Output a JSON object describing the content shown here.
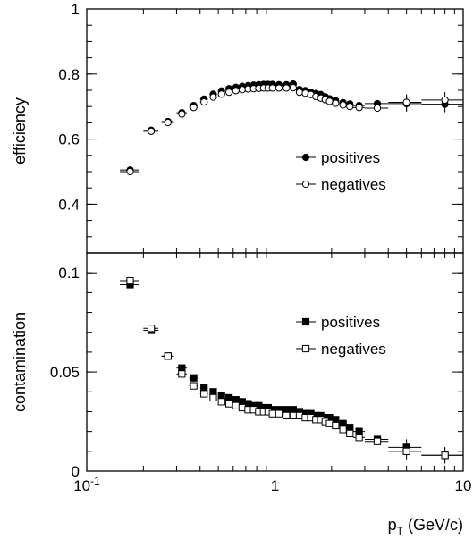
{
  "chart_data": [
    {
      "type": "scatter",
      "panel": "top",
      "xlabel": "",
      "ylabel": "efficiency",
      "xscale": "log",
      "xlim": [
        0.1,
        10
      ],
      "ylim": [
        0.25,
        1.0
      ],
      "yticks": [
        {
          "value": 0.4,
          "label": "0.4"
        },
        {
          "value": 0.6,
          "label": "0.6"
        },
        {
          "value": 0.8,
          "label": "0.8"
        },
        {
          "value": 1.0,
          "label": "1"
        }
      ],
      "legend_position": "right-middle",
      "series": [
        {
          "name": "positives",
          "marker": "filled-circle",
          "x": [
            0.17,
            0.22,
            0.27,
            0.32,
            0.37,
            0.42,
            0.47,
            0.52,
            0.57,
            0.62,
            0.67,
            0.72,
            0.77,
            0.82,
            0.87,
            0.92,
            0.97,
            1.05,
            1.15,
            1.25,
            1.35,
            1.45,
            1.55,
            1.65,
            1.75,
            1.85,
            1.95,
            2.1,
            2.3,
            2.5,
            2.8,
            3.5,
            5.0,
            8.0
          ],
          "y": [
            0.505,
            0.627,
            0.654,
            0.681,
            0.703,
            0.723,
            0.738,
            0.748,
            0.755,
            0.759,
            0.762,
            0.764,
            0.766,
            0.767,
            0.768,
            0.768,
            0.768,
            0.767,
            0.767,
            0.769,
            0.752,
            0.749,
            0.744,
            0.74,
            0.737,
            0.73,
            0.724,
            0.718,
            0.712,
            0.708,
            0.703,
            0.709,
            0.709,
            0.707
          ],
          "xerr": [
            0.02,
            0.02,
            0.02,
            0.02,
            0.02,
            0.02,
            0.02,
            0.02,
            0.02,
            0.02,
            0.02,
            0.02,
            0.02,
            0.02,
            0.02,
            0.02,
            0.02,
            0.04,
            0.04,
            0.04,
            0.04,
            0.04,
            0.04,
            0.04,
            0.04,
            0.04,
            0.04,
            0.08,
            0.1,
            0.1,
            0.2,
            0.5,
            1.0,
            2.0
          ]
        },
        {
          "name": "negatives",
          "marker": "open-circle",
          "x": [
            0.17,
            0.22,
            0.27,
            0.32,
            0.37,
            0.42,
            0.47,
            0.52,
            0.57,
            0.62,
            0.67,
            0.72,
            0.77,
            0.82,
            0.87,
            0.92,
            0.97,
            1.05,
            1.15,
            1.25,
            1.35,
            1.45,
            1.55,
            1.65,
            1.75,
            1.85,
            1.95,
            2.1,
            2.3,
            2.5,
            2.8,
            3.5,
            5.0,
            8.0
          ],
          "y": [
            0.5,
            0.624,
            0.651,
            0.677,
            0.697,
            0.714,
            0.729,
            0.738,
            0.744,
            0.749,
            0.752,
            0.754,
            0.755,
            0.756,
            0.757,
            0.757,
            0.757,
            0.757,
            0.757,
            0.758,
            0.744,
            0.741,
            0.737,
            0.731,
            0.726,
            0.721,
            0.716,
            0.71,
            0.705,
            0.7,
            0.697,
            0.695,
            0.713,
            0.72
          ],
          "xerr": [
            0.02,
            0.02,
            0.02,
            0.02,
            0.02,
            0.02,
            0.02,
            0.02,
            0.02,
            0.02,
            0.02,
            0.02,
            0.02,
            0.02,
            0.02,
            0.02,
            0.02,
            0.04,
            0.04,
            0.04,
            0.04,
            0.04,
            0.04,
            0.04,
            0.04,
            0.04,
            0.04,
            0.08,
            0.1,
            0.1,
            0.2,
            0.5,
            1.0,
            2.0
          ]
        }
      ]
    },
    {
      "type": "scatter",
      "panel": "bottom",
      "xlabel": "p_T (GeV/c)",
      "ylabel": "contamination",
      "xscale": "log",
      "xlim": [
        0.1,
        10
      ],
      "ylim": [
        0,
        0.11
      ],
      "xticks": [
        {
          "value": 0.1,
          "base": "10",
          "exp": "-1"
        },
        {
          "value": 1,
          "base": "1",
          "exp": ""
        },
        {
          "value": 10,
          "base": "10",
          "exp": ""
        }
      ],
      "yticks": [
        {
          "value": 0,
          "label": "0"
        },
        {
          "value": 0.05,
          "label": "0.05"
        },
        {
          "value": 0.1,
          "label": "0.1"
        }
      ],
      "legend_position": "right-middle",
      "series": [
        {
          "name": "positives",
          "marker": "filled-square",
          "x": [
            0.17,
            0.22,
            0.27,
            0.32,
            0.37,
            0.42,
            0.47,
            0.52,
            0.57,
            0.62,
            0.67,
            0.72,
            0.77,
            0.82,
            0.87,
            0.92,
            0.97,
            1.05,
            1.15,
            1.25,
            1.35,
            1.45,
            1.55,
            1.65,
            1.75,
            1.85,
            1.95,
            2.1,
            2.3,
            2.5,
            2.8,
            3.5,
            5.0,
            8.0
          ],
          "y": [
            0.094,
            0.071,
            0.058,
            0.052,
            0.047,
            0.042,
            0.04,
            0.038,
            0.037,
            0.036,
            0.035,
            0.034,
            0.033,
            0.033,
            0.032,
            0.032,
            0.031,
            0.031,
            0.031,
            0.031,
            0.03,
            0.029,
            0.029,
            0.028,
            0.028,
            0.027,
            0.027,
            0.026,
            0.024,
            0.022,
            0.02,
            0.016,
            0.012,
            0.008
          ],
          "xerr": [
            0.02,
            0.02,
            0.02,
            0.02,
            0.02,
            0.02,
            0.02,
            0.02,
            0.02,
            0.02,
            0.02,
            0.02,
            0.02,
            0.02,
            0.02,
            0.02,
            0.02,
            0.04,
            0.04,
            0.04,
            0.04,
            0.04,
            0.04,
            0.04,
            0.04,
            0.04,
            0.04,
            0.08,
            0.1,
            0.1,
            0.2,
            0.5,
            1.0,
            2.0
          ]
        },
        {
          "name": "negatives",
          "marker": "open-square",
          "x": [
            0.17,
            0.22,
            0.27,
            0.32,
            0.37,
            0.42,
            0.47,
            0.52,
            0.57,
            0.62,
            0.67,
            0.72,
            0.77,
            0.82,
            0.87,
            0.92,
            0.97,
            1.05,
            1.15,
            1.25,
            1.35,
            1.45,
            1.55,
            1.65,
            1.75,
            1.85,
            1.95,
            2.1,
            2.3,
            2.5,
            2.8,
            3.5,
            5.0,
            8.0
          ],
          "y": [
            0.096,
            0.072,
            0.058,
            0.049,
            0.043,
            0.039,
            0.037,
            0.035,
            0.034,
            0.033,
            0.032,
            0.031,
            0.031,
            0.03,
            0.03,
            0.03,
            0.029,
            0.029,
            0.028,
            0.028,
            0.028,
            0.027,
            0.027,
            0.026,
            0.026,
            0.025,
            0.024,
            0.023,
            0.021,
            0.019,
            0.017,
            0.015,
            0.01,
            0.008
          ],
          "xerr": [
            0.02,
            0.02,
            0.02,
            0.02,
            0.02,
            0.02,
            0.02,
            0.02,
            0.02,
            0.02,
            0.02,
            0.02,
            0.02,
            0.02,
            0.02,
            0.02,
            0.02,
            0.04,
            0.04,
            0.04,
            0.04,
            0.04,
            0.04,
            0.04,
            0.04,
            0.04,
            0.04,
            0.08,
            0.1,
            0.1,
            0.2,
            0.5,
            1.0,
            2.0
          ]
        }
      ]
    }
  ]
}
